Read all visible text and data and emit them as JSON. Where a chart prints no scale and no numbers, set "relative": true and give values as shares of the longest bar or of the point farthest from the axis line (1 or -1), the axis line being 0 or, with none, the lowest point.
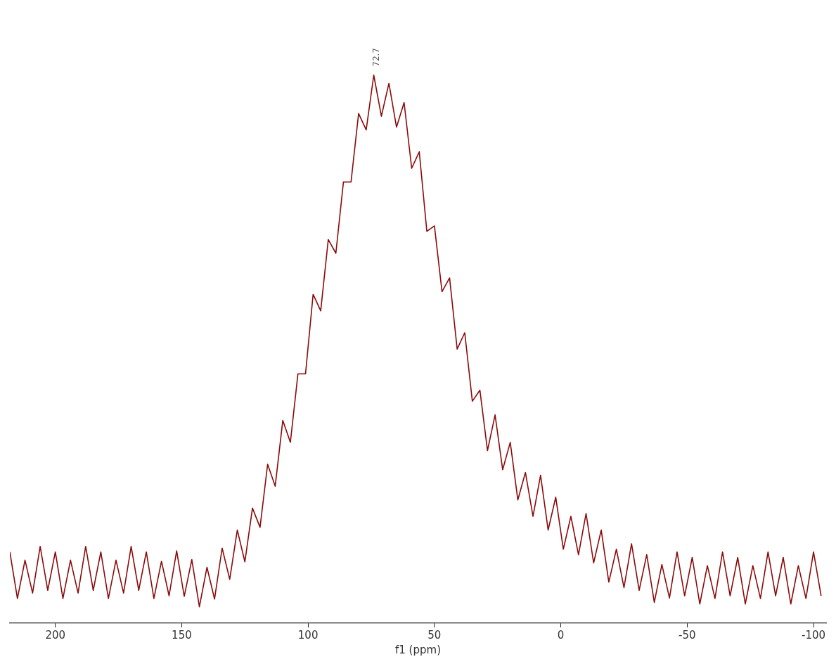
{
  "chart_data": {
    "type": "line",
    "xlabel": "f1 (ppm)",
    "relative": true,
    "grid": false,
    "legend": false,
    "marker": "none",
    "line_style": "solid",
    "xlim": [
      218,
      -105
    ],
    "xticks": [
      200,
      150,
      100,
      50,
      0,
      -50,
      -100
    ],
    "annotations": [
      {
        "text": "72.7",
        "x": 72.7,
        "y": 1
      }
    ],
    "x": [
      218,
      215,
      212,
      209,
      206,
      203,
      200,
      197,
      194,
      191,
      188,
      185,
      182,
      179,
      176,
      173,
      170,
      167,
      164,
      161,
      158,
      155,
      152,
      149,
      146,
      143,
      140,
      137,
      134,
      131,
      128,
      125,
      122,
      119,
      116,
      113,
      110,
      107,
      104,
      101,
      98,
      95,
      92,
      89,
      86,
      83,
      80,
      77,
      74,
      71,
      68,
      65,
      62,
      59,
      56,
      53,
      50,
      47,
      44,
      41,
      38,
      35,
      32,
      29,
      26,
      23,
      20,
      17,
      14,
      11,
      8,
      5,
      2,
      -1,
      -4,
      -7,
      -10,
      -13,
      -16,
      -19,
      -22,
      -25,
      -28,
      -31,
      -34,
      -37,
      -40,
      -43,
      -46,
      -49,
      -52,
      -55,
      -58,
      -61,
      -64,
      -67,
      -70,
      -73,
      -76,
      -79,
      -82,
      -85,
      -88,
      -91,
      -94,
      -97,
      -100,
      -103
    ],
    "series": [
      {
        "color": "#8b0a0a",
        "values": [
          0.13,
          0.045,
          0.115,
          0.055,
          0.14,
          0.06,
          0.13,
          0.045,
          0.115,
          0.055,
          0.14,
          0.06,
          0.13,
          0.045,
          0.115,
          0.055,
          0.14,
          0.06,
          0.13,
          0.045,
          0.113,
          0.05,
          0.132,
          0.049,
          0.116,
          0.03,
          0.102,
          0.044,
          0.137,
          0.08,
          0.17,
          0.112,
          0.21,
          0.175,
          0.29,
          0.25,
          0.37,
          0.33,
          0.455,
          0.455,
          0.6,
          0.57,
          0.7,
          0.675,
          0.805,
          0.805,
          0.93,
          0.9,
          1.0,
          0.925,
          0.985,
          0.905,
          0.95,
          0.83,
          0.86,
          0.715,
          0.725,
          0.605,
          0.63,
          0.5,
          0.53,
          0.405,
          0.425,
          0.315,
          0.38,
          0.28,
          0.33,
          0.225,
          0.275,
          0.195,
          0.27,
          0.17,
          0.23,
          0.135,
          0.195,
          0.125,
          0.2,
          0.11,
          0.17,
          0.075,
          0.135,
          0.065,
          0.145,
          0.06,
          0.125,
          0.038,
          0.107,
          0.046,
          0.13,
          0.05,
          0.12,
          0.035,
          0.105,
          0.045,
          0.13,
          0.05,
          0.12,
          0.035,
          0.105,
          0.045,
          0.13,
          0.05,
          0.12,
          0.035,
          0.105,
          0.045,
          0.13,
          0.05
        ]
      }
    ]
  }
}
